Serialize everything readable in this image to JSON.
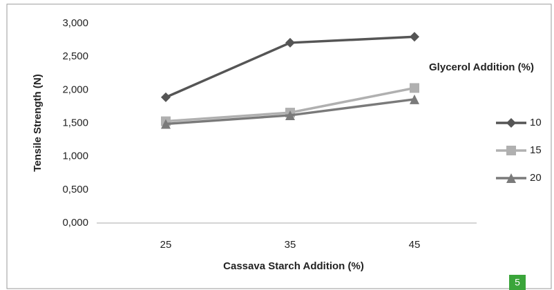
{
  "chart_data": {
    "type": "line",
    "y_label": "Tensile Strength (N)",
    "x_label": "Cassava Starch Addition (%)",
    "legend_title": "Glycerol Addition (%)",
    "legend": "right",
    "grid": false,
    "categories": [
      "25",
      "35",
      "45"
    ],
    "series": [
      {
        "name": "10",
        "color": "#555555",
        "marker": "diamond",
        "values": [
          1.89,
          2.71,
          2.8
        ]
      },
      {
        "name": "15",
        "color": "#b0b0b0",
        "marker": "square",
        "values": [
          1.53,
          1.66,
          2.03
        ]
      },
      {
        "name": "20",
        "color": "#7a7a7a",
        "marker": "triangle",
        "values": [
          1.49,
          1.62,
          1.86
        ]
      }
    ],
    "ylim": [
      0,
      3
    ],
    "yticks": [
      {
        "value": 0,
        "label": "0,000"
      },
      {
        "value": 0.5,
        "label": "0,500"
      },
      {
        "value": 1,
        "label": "1,000"
      },
      {
        "value": 1.5,
        "label": "1,500"
      },
      {
        "value": 2,
        "label": "2,000"
      },
      {
        "value": 2.5,
        "label": "2,500"
      },
      {
        "value": 3,
        "label": "3,000"
      }
    ]
  },
  "badge": "5"
}
